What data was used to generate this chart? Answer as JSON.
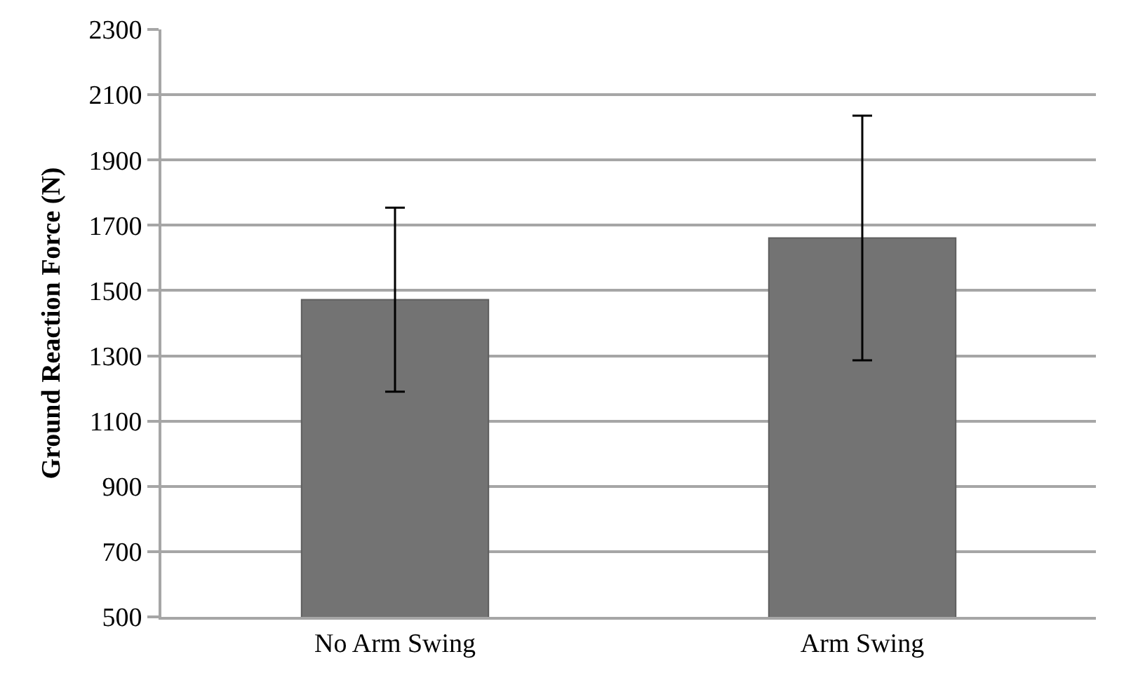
{
  "chart_data": {
    "type": "bar",
    "ylabel": "Ground Reaction Force (N)",
    "categories": [
      "No Arm Swing",
      "Arm Swing"
    ],
    "values": [
      1472,
      1661
    ],
    "errors": [
      282,
      375
    ],
    "color": "#737373",
    "ylim": [
      500,
      2300
    ],
    "yticks": [
      500,
      700,
      900,
      1100,
      1300,
      1500,
      1700,
      1900,
      2100,
      2300
    ],
    "grid": "y",
    "legend": false
  }
}
